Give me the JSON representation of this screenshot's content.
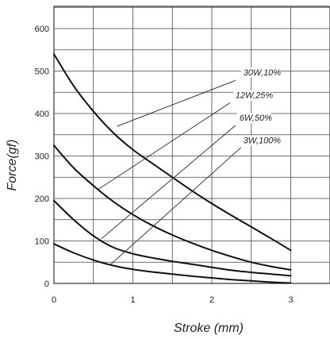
{
  "chart_data": {
    "type": "line",
    "title": "",
    "xlabel": "Stroke (mm)",
    "ylabel": "Force(gf)",
    "xlim": [
      0,
      3.5
    ],
    "ylim": [
      0,
      650
    ],
    "x_ticks": [
      "0",
      "1",
      "2",
      "3"
    ],
    "y_ticks": [
      "0",
      "100",
      "200",
      "300",
      "400",
      "500",
      "600"
    ],
    "grid": true,
    "legend": "none",
    "series": [
      {
        "name": "30W,10%",
        "x": [
          0,
          0.25,
          0.5,
          0.75,
          1,
          1.25,
          1.5,
          1.75,
          2,
          2.25,
          2.5,
          2.75,
          3
        ],
        "y": [
          540,
          465,
          405,
          355,
          315,
          282,
          250,
          218,
          188,
          160,
          133,
          106,
          78
        ]
      },
      {
        "name": "12W,25%",
        "x": [
          0,
          0.25,
          0.5,
          0.75,
          1,
          1.25,
          1.5,
          1.75,
          2,
          2.25,
          2.5,
          2.75,
          3
        ],
        "y": [
          325,
          272,
          230,
          193,
          162,
          136,
          114,
          95,
          78,
          63,
          50,
          40,
          32
        ]
      },
      {
        "name": "6W,50%",
        "x": [
          0,
          0.25,
          0.5,
          0.75,
          1,
          1.25,
          1.5,
          1.75,
          2,
          2.25,
          2.5,
          2.75,
          3
        ],
        "y": [
          195,
          150,
          112,
          85,
          70,
          60,
          52,
          45,
          38,
          31,
          26,
          22,
          18
        ]
      },
      {
        "name": "3W,100%",
        "x": [
          0,
          0.25,
          0.5,
          0.75,
          1,
          1.25,
          1.5,
          1.75,
          2,
          2.25,
          2.5,
          2.75,
          3
        ],
        "y": [
          93,
          72,
          55,
          42,
          33,
          27,
          22,
          17,
          13,
          9,
          6,
          3,
          1
        ]
      }
    ],
    "annotations": [
      {
        "text": "30W,10%",
        "series": "30W,10%",
        "label_x": 2.4,
        "label_y": 490,
        "leader_from": [
          2.3,
          478
        ],
        "leader_to": [
          0.8,
          370
        ]
      },
      {
        "text": "12W,25%",
        "series": "12W,25%",
        "label_x": 2.3,
        "label_y": 436,
        "leader_from": [
          2.23,
          425
        ],
        "leader_to": [
          0.55,
          220
        ]
      },
      {
        "text": "6W,50%",
        "series": "6W,50%",
        "label_x": 2.35,
        "label_y": 383,
        "leader_from": [
          2.3,
          372
        ],
        "leader_to": [
          0.6,
          105
        ]
      },
      {
        "text": "3W,100%",
        "series": "3W,100%",
        "label_x": 2.4,
        "label_y": 330,
        "leader_from": [
          2.37,
          320
        ],
        "leader_to": [
          0.72,
          45
        ]
      }
    ]
  }
}
